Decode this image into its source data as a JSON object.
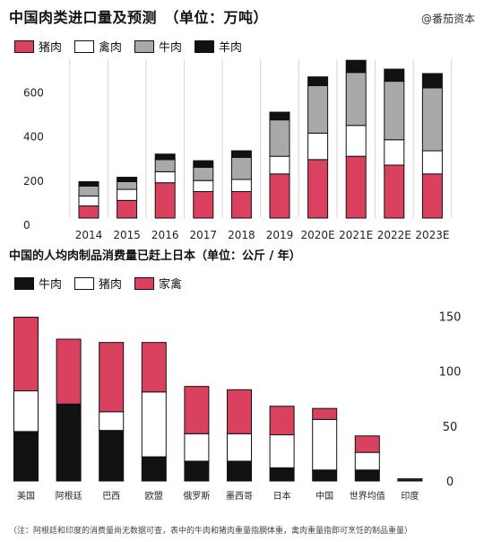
{
  "watermark": "@番茄资本",
  "footnote": "（注：阿根廷和印度的消费量尚无数据可查，表中的牛肉和猪肉重量指胴体重，禽肉重量指即可烹饪的制品重量）",
  "chart_data": [
    {
      "type": "bar",
      "stacked": true,
      "title": "中国肉类进口量及预测　（单位：万吨）",
      "categories": [
        "2014",
        "2015",
        "2016",
        "2017",
        "2018",
        "2019",
        "2020E",
        "2021E",
        "2022E",
        "2023E"
      ],
      "series": [
        {
          "name": "猪肉",
          "color": "#d9415f",
          "values": [
            55,
            80,
            160,
            120,
            120,
            200,
            265,
            280,
            240,
            200
          ]
        },
        {
          "name": "禽肉",
          "color": "#ffffff",
          "values": [
            45,
            50,
            50,
            50,
            55,
            80,
            120,
            140,
            115,
            105
          ]
        },
        {
          "name": "牛肉",
          "color": "#a9a9a9",
          "values": [
            45,
            35,
            55,
            60,
            100,
            165,
            215,
            240,
            265,
            285
          ]
        },
        {
          "name": "羊肉",
          "color": "#111111",
          "values": [
            20,
            20,
            25,
            30,
            30,
            35,
            40,
            55,
            55,
            65
          ]
        }
      ],
      "yticks": [
        0,
        200,
        400,
        600
      ],
      "ylim": [
        0,
        720
      ],
      "grid": true
    },
    {
      "type": "bar",
      "stacked": true,
      "title": "中国的人均肉制品消费量已赶上日本（单位：公斤 / 年）",
      "categories": [
        "美国",
        "阿根廷",
        "巴西",
        "欧盟",
        "俄罗斯",
        "墨西哥",
        "日本",
        "中国",
        "世界均值",
        "印度"
      ],
      "series": [
        {
          "name": "牛肉",
          "color": "#111111",
          "values": [
            45,
            70,
            46,
            22,
            18,
            18,
            12,
            10,
            10,
            0.5
          ]
        },
        {
          "name": "猪肉",
          "color": "#ffffff",
          "values": [
            37,
            0,
            17,
            59,
            25,
            25,
            30,
            46,
            16,
            0.5
          ]
        },
        {
          "name": "家禽",
          "color": "#d9415f",
          "values": [
            67,
            59,
            63,
            45,
            43,
            40,
            26,
            10,
            15,
            1
          ]
        }
      ],
      "yticks": [
        0,
        50,
        100,
        150
      ],
      "ylim": [
        0,
        160
      ],
      "grid": false
    }
  ]
}
